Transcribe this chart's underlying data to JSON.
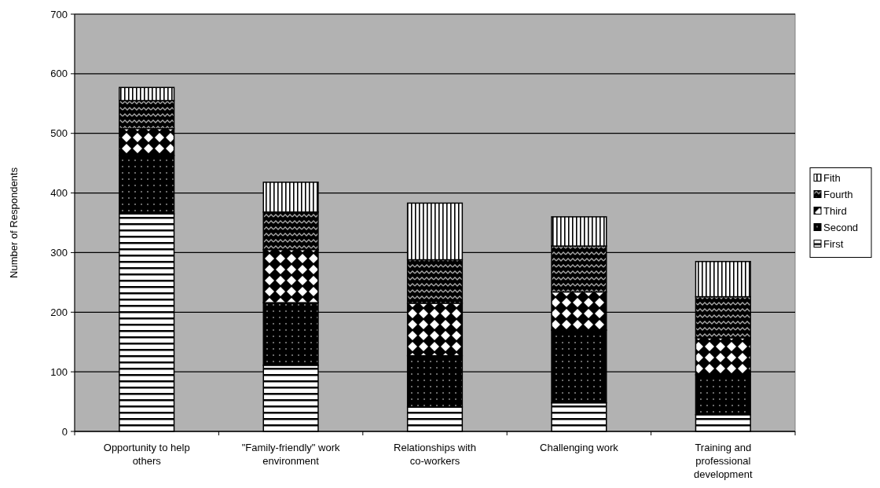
{
  "chart_data": {
    "type": "bar",
    "stacked": true,
    "ylabel": "Number of Respondents",
    "categories": [
      "Opportunity to help others",
      "\"Family-friendly\" work environment",
      "Relationships with co-workers",
      "Challenging work",
      "Training and professional development"
    ],
    "series": [
      {
        "name": "First",
        "color": "#000000",
        "values": [
          365,
          111,
          41,
          48,
          28
        ]
      },
      {
        "name": "Second",
        "color": "#000000",
        "values": [
          98,
          105,
          86,
          122,
          67
        ]
      },
      {
        "name": "Third",
        "color": "#000000",
        "values": [
          45,
          89,
          88,
          64,
          62
        ]
      },
      {
        "name": "Fourth",
        "color": "#000000",
        "values": [
          47,
          63,
          73,
          77,
          69
        ]
      },
      {
        "name": "Fith",
        "color": "#000000",
        "values": [
          22,
          50,
          95,
          49,
          59
        ]
      }
    ],
    "ylim": [
      0,
      700
    ],
    "yticks": [
      0,
      100,
      200,
      300,
      400,
      500,
      600,
      700
    ],
    "grid": "y",
    "legend": "right"
  }
}
